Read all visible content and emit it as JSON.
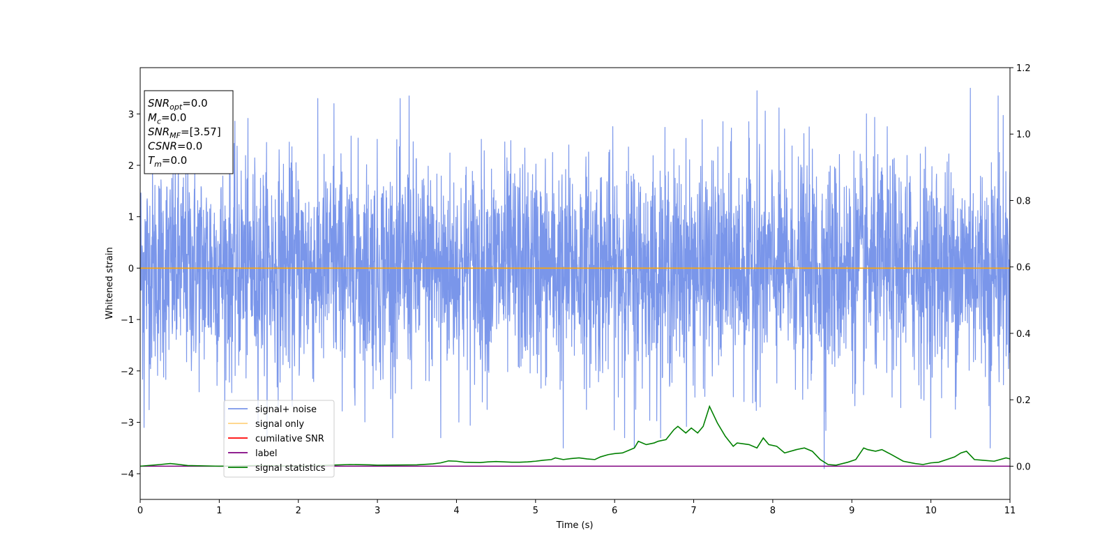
{
  "chart_data": {
    "type": "line",
    "xlabel": "Time (s)",
    "ylabel": "Whitened strain",
    "xlim": [
      0,
      11
    ],
    "ylim": [
      -4.5,
      3.9
    ],
    "y2lim": [
      -0.1,
      1.2
    ],
    "grid": false,
    "legend_placement": "lower-left",
    "x_ticks": [
      "0",
      "1",
      "2",
      "3",
      "4",
      "5",
      "6",
      "7",
      "8",
      "9",
      "10",
      "11"
    ],
    "y_ticks": [
      "3",
      "2",
      "1",
      "0",
      "−1",
      "−2",
      "−3",
      "−4"
    ],
    "y2_ticks": [
      "1.2",
      "1.0",
      "0.8",
      "0.6",
      "0.4",
      "0.2",
      "0.0"
    ],
    "annotation": [
      {
        "base": "SNR",
        "sub": "opt",
        "value": "=0.0"
      },
      {
        "base": "M",
        "sub": "c",
        "value": "=0.0"
      },
      {
        "base": "SNR",
        "sub": "MF",
        "value": "=[3.57]"
      },
      {
        "base": "CSNR",
        "sub": "",
        "value": "=0.0"
      },
      {
        "base": "T",
        "sub": "m",
        "value": "=0.0"
      }
    ],
    "series": [
      {
        "name": "signal+ noise",
        "color": "#4169e1",
        "axis": "left",
        "note": "whitened noise, approx. zero-mean unit-variance, peaks about ±3.5",
        "extremes": [
          {
            "x": 3.4,
            "y": 3.35
          },
          {
            "x": 2.45,
            "y": 3.2
          },
          {
            "x": 6.25,
            "y": 3.15
          },
          {
            "x": 7.8,
            "y": 3.45
          },
          {
            "x": 10.5,
            "y": 3.5
          },
          {
            "x": 10.85,
            "y": 3.35
          },
          {
            "x": 8.65,
            "y": -3.9
          },
          {
            "x": 6.25,
            "y": -3.5
          },
          {
            "x": 5.35,
            "y": -3.5
          },
          {
            "x": 3.8,
            "y": -3.3
          },
          {
            "x": 10.75,
            "y": -3.5
          },
          {
            "x": 0.05,
            "y": -3.1
          }
        ]
      },
      {
        "name": "signal only",
        "color": "#ffa500",
        "axis": "left",
        "x": [
          0,
          11
        ],
        "y": [
          0,
          0
        ]
      },
      {
        "name": "cumilative SNR",
        "color": "#ff0000",
        "axis": "right",
        "x": [],
        "y": []
      },
      {
        "name": "label",
        "color": "#800080",
        "axis": "right",
        "x": [
          0,
          11
        ],
        "y": [
          0,
          0
        ]
      },
      {
        "name": "signal statistics",
        "color": "#008000",
        "axis": "right",
        "x": [
          0,
          0.25,
          0.38,
          0.5,
          0.6,
          1.0,
          1.5,
          2.0,
          2.4,
          2.65,
          2.9,
          3.0,
          3.5,
          3.7,
          3.8,
          3.9,
          4.0,
          4.1,
          4.3,
          4.4,
          4.5,
          4.6,
          4.7,
          4.8,
          4.9,
          5.0,
          5.1,
          5.2,
          5.25,
          5.35,
          5.45,
          5.55,
          5.65,
          5.75,
          5.82,
          5.92,
          6.0,
          6.1,
          6.2,
          6.25,
          6.3,
          6.4,
          6.5,
          6.55,
          6.65,
          6.75,
          6.8,
          6.9,
          6.97,
          7.05,
          7.12,
          7.2,
          7.3,
          7.4,
          7.5,
          7.55,
          7.7,
          7.8,
          7.88,
          7.95,
          8.05,
          8.15,
          8.3,
          8.4,
          8.5,
          8.6,
          8.7,
          8.8,
          8.95,
          9.05,
          9.15,
          9.2,
          9.3,
          9.38,
          9.5,
          9.65,
          9.8,
          9.9,
          10.0,
          10.1,
          10.2,
          10.3,
          10.38,
          10.45,
          10.55,
          10.65,
          10.8,
          10.95,
          11.0
        ],
        "y": [
          0.0,
          0.005,
          0.008,
          0.005,
          0.002,
          0.0,
          0.002,
          0.0,
          0.003,
          0.005,
          0.004,
          0.003,
          0.004,
          0.007,
          0.01,
          0.016,
          0.015,
          0.012,
          0.011,
          0.013,
          0.014,
          0.013,
          0.012,
          0.012,
          0.013,
          0.015,
          0.018,
          0.02,
          0.025,
          0.02,
          0.023,
          0.025,
          0.022,
          0.02,
          0.028,
          0.035,
          0.038,
          0.04,
          0.05,
          0.055,
          0.075,
          0.065,
          0.07,
          0.075,
          0.08,
          0.11,
          0.12,
          0.1,
          0.115,
          0.1,
          0.12,
          0.18,
          0.13,
          0.09,
          0.06,
          0.07,
          0.065,
          0.055,
          0.085,
          0.065,
          0.06,
          0.04,
          0.05,
          0.055,
          0.045,
          0.02,
          0.005,
          0.003,
          0.012,
          0.02,
          0.055,
          0.05,
          0.045,
          0.05,
          0.035,
          0.015,
          0.008,
          0.005,
          0.01,
          0.012,
          0.02,
          0.028,
          0.04,
          0.045,
          0.02,
          0.018,
          0.015,
          0.025,
          0.022
        ]
      }
    ]
  }
}
